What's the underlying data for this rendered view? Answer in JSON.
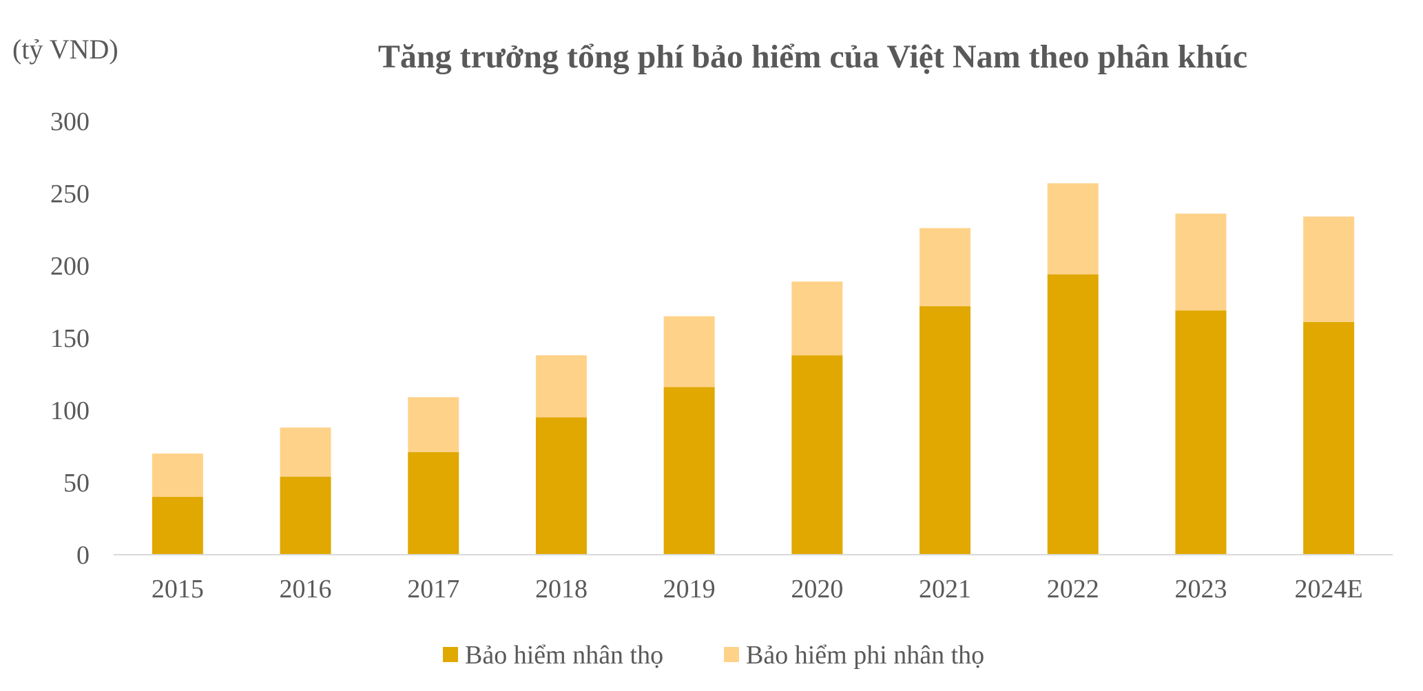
{
  "chart_data": {
    "type": "bar",
    "stacked": true,
    "title": "Tăng trưởng tổng phí bảo hiểm của Việt Nam theo phân khúc",
    "ylabel": "(tỷ VND)",
    "xlabel": "",
    "ylim": [
      0,
      300
    ],
    "yticks": [
      "0",
      "50",
      "100",
      "150",
      "200",
      "250",
      "300"
    ],
    "categories": [
      "2015",
      "2016",
      "2017",
      "2018",
      "2019",
      "2020",
      "2021",
      "2022",
      "2023",
      "2024E"
    ],
    "series": [
      {
        "name": "Bảo hiểm nhân thọ",
        "color": "#E0A800",
        "values": [
          40,
          54,
          71,
          95,
          116,
          138,
          172,
          194,
          169,
          161
        ]
      },
      {
        "name": "Bảo hiểm phi nhân thọ",
        "color": "#FFD28A",
        "values": [
          30,
          34,
          38,
          43,
          49,
          51,
          54,
          63,
          67,
          73
        ]
      }
    ],
    "grid": false,
    "legend": "bottom"
  }
}
